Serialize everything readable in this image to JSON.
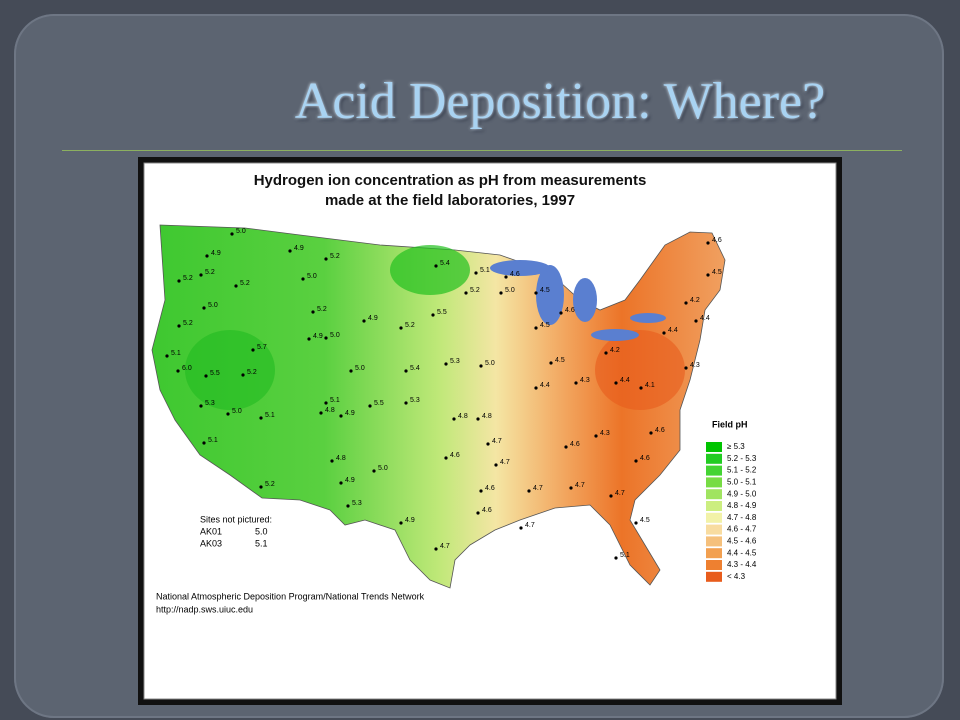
{
  "slide": {
    "title": "Acid Deposition: Where?"
  },
  "map": {
    "title_lines": [
      "Hydrogen ion concentration as pH from measurements",
      "made at the field laboratories, 1997"
    ],
    "legend": {
      "title": "Field pH",
      "entries": [
        {
          "label": "≥ 5.3",
          "color": "#00c400"
        },
        {
          "label": "5.2 - 5.3",
          "color": "#22cc22"
        },
        {
          "label": "5.1 - 5.2",
          "color": "#44d433"
        },
        {
          "label": "5.0 - 5.1",
          "color": "#77dc44"
        },
        {
          "label": "4.9 - 5.0",
          "color": "#a0e460"
        },
        {
          "label": "4.8 - 4.9",
          "color": "#ccee80"
        },
        {
          "label": "4.7 - 4.8",
          "color": "#f2f2a8"
        },
        {
          "label": "4.6 - 4.7",
          "color": "#f8dca0"
        },
        {
          "label": "4.5 - 4.6",
          "color": "#f5c07c"
        },
        {
          "label": "4.4 - 4.5",
          "color": "#f2a050"
        },
        {
          "label": "4.3 - 4.4",
          "color": "#ee8030"
        },
        {
          "label": "< 4.3",
          "color": "#e85c1c"
        }
      ]
    },
    "sites_not_pictured": {
      "title": "Sites not pictured:",
      "rows": [
        [
          "AK01",
          "5.0"
        ],
        [
          "AK03",
          "5.1"
        ]
      ]
    },
    "source": [
      "National Atmospheric Deposition Program/National Trends Network",
      "http://nadp.sws.uiuc.edu"
    ],
    "site_values": [
      "5.0",
      "4.9",
      "5.2",
      "5.2",
      "5.2",
      "5.0",
      "5.2",
      "5.1",
      "6.0",
      "5.5",
      "5.3",
      "5.0",
      "5.1",
      "5.2",
      "5.1",
      "5.7",
      "5.2",
      "4.9",
      "5.2",
      "5.0",
      "5.2",
      "5.0",
      "4.9",
      "4.9",
      "5.4",
      "5.1",
      "5.2",
      "5.5",
      "5.2",
      "5.4",
      "5.3",
      "5.0",
      "5.1",
      "4.9",
      "5.5",
      "5.3",
      "4.8",
      "4.8",
      "5.0",
      "4.9",
      "5.3",
      "4.9",
      "4.7",
      "4.6",
      "4.8",
      "5.0",
      "4.8",
      "4.7",
      "4.7",
      "4.6",
      "4.6",
      "4.7",
      "4.7",
      "4.7",
      "4.7",
      "4.6",
      "4.3",
      "4.4",
      "4.5",
      "4.3",
      "4.2",
      "4.4",
      "4.1",
      "4.4",
      "4.2",
      "4.6",
      "4.5",
      "4.4",
      "4.3",
      "4.6",
      "4.6",
      "4.5",
      "5.1",
      "4.5",
      "4.6",
      "5.0",
      "4.6",
      "4.5"
    ]
  }
}
